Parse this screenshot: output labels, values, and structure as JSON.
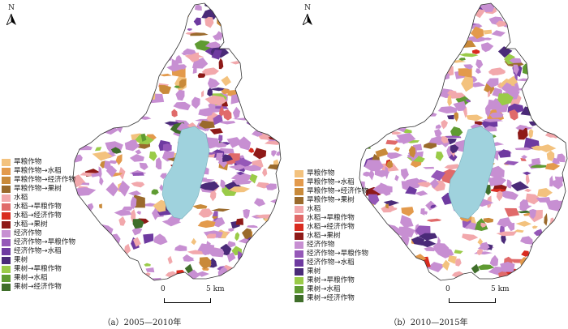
{
  "panels": [
    {
      "caption": "（a）2005—2010年",
      "north_label": "N",
      "scale_zero": "0",
      "scale_max": "5 km"
    },
    {
      "caption": "（b）2010—2015年",
      "north_label": "N",
      "scale_zero": "0",
      "scale_max": "5 km"
    }
  ],
  "legend": [
    {
      "label": "旱粮作物",
      "color": "#f3c27e"
    },
    {
      "label": "旱粮作物→水稻",
      "color": "#e39a4c"
    },
    {
      "label": "旱粮作物→经济作物",
      "color": "#c98a3a"
    },
    {
      "label": "旱粮作物→果树",
      "color": "#9a6a2c"
    },
    {
      "label": "水稻",
      "color": "#f2a8ac"
    },
    {
      "label": "水稻→旱粮作物",
      "color": "#e06a6a"
    },
    {
      "label": "水稻→经济作物",
      "color": "#d92b1f"
    },
    {
      "label": "水稻→果树",
      "color": "#8e1a18"
    },
    {
      "label": "经济作物",
      "color": "#c78fd2"
    },
    {
      "label": "经济作物→旱粮作物",
      "color": "#9558b8"
    },
    {
      "label": "经济作物→水稻",
      "color": "#6e3aa0"
    },
    {
      "label": "果树",
      "color": "#4a2a78"
    },
    {
      "label": "果树→旱粮作物",
      "color": "#9acb48"
    },
    {
      "label": "果树→水稻",
      "color": "#5f9b32"
    },
    {
      "label": "果树→经济作物",
      "color": "#3f6e2a"
    }
  ],
  "colors": {
    "lake": "#9fd2dd",
    "boundary": "#333333",
    "background": "#ffffff"
  }
}
